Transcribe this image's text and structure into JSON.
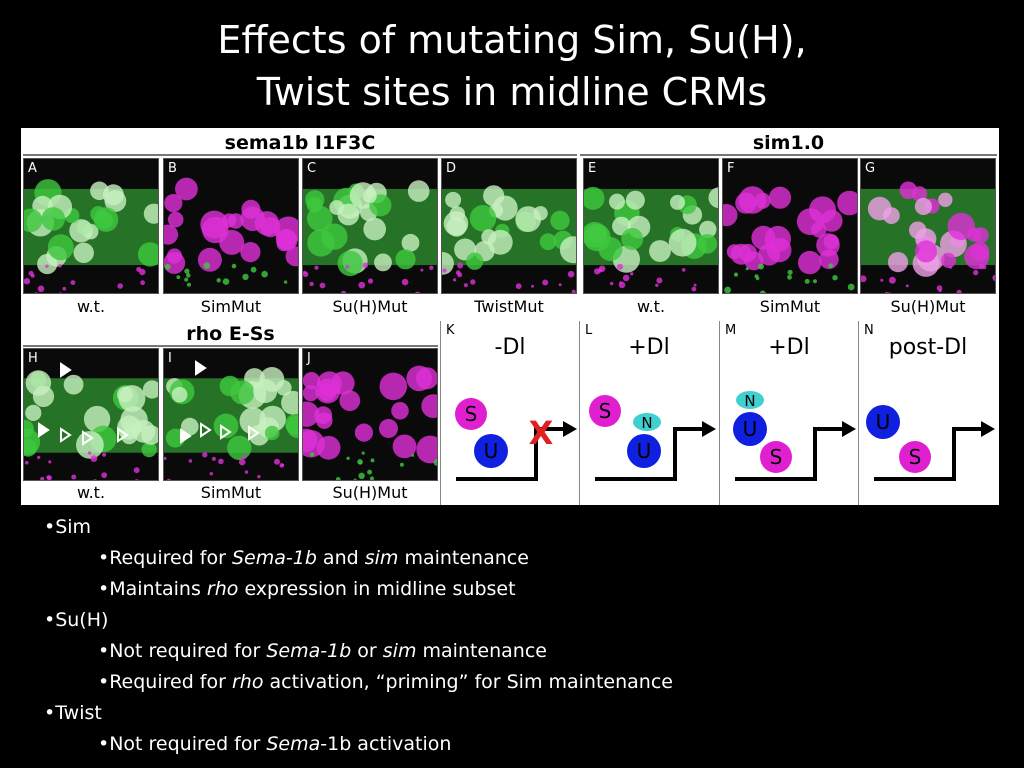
{
  "title": {
    "line1": "Effects of mutating Sim, Su(H),",
    "line2": "Twist sites in midline CRMs"
  },
  "figure": {
    "headers": {
      "sema": "sema1b I1F3C",
      "sim": "sim1.0",
      "rho": "rho E-Ss"
    },
    "top_panels": [
      {
        "letter": "A",
        "caption": "w.t.",
        "look": "green"
      },
      {
        "letter": "B",
        "caption": "SimMut",
        "look": "magenta"
      },
      {
        "letter": "C",
        "caption": "Su(H)Mut",
        "look": "green"
      },
      {
        "letter": "D",
        "caption": "TwistMut",
        "look": "green"
      },
      {
        "letter": "E",
        "caption": "w.t.",
        "look": "green"
      },
      {
        "letter": "F",
        "caption": "SimMut",
        "look": "magenta"
      },
      {
        "letter": "G",
        "caption": "Su(H)Mut",
        "look": "mixed"
      }
    ],
    "bottom_panels": [
      {
        "letter": "H",
        "caption": "w.t.",
        "look": "green"
      },
      {
        "letter": "I",
        "caption": "SimMut",
        "look": "green"
      },
      {
        "letter": "J",
        "caption": "Su(H)Mut",
        "look": "magenta"
      }
    ],
    "diagrams": [
      {
        "letter": "K",
        "label": "-Dl",
        "s": "S",
        "u": "U",
        "n": "",
        "x": "X"
      },
      {
        "letter": "L",
        "label": "+Dl",
        "s": "S",
        "u": "U",
        "n": "N",
        "x": ""
      },
      {
        "letter": "M",
        "label": "+Dl",
        "s": "S",
        "u": "U",
        "n": "N",
        "x": ""
      },
      {
        "letter": "N",
        "label": "post-Dl",
        "s": "S",
        "u": "U",
        "n": "",
        "x": ""
      }
    ],
    "colors": {
      "sim": "#e020d0",
      "suh": "#1020e0",
      "notch": "#40d0d0",
      "x": "#e02020",
      "green": "#3ec83e",
      "magenta": "#e030d8"
    }
  },
  "bullets": [
    {
      "level": 1,
      "parts": [
        {
          "t": "•Sim"
        }
      ]
    },
    {
      "level": 2,
      "parts": [
        {
          "t": "•Required for "
        },
        {
          "t": "Sema-1b",
          "i": true
        },
        {
          "t": " and "
        },
        {
          "t": "sim",
          "i": true
        },
        {
          "t": " maintenance"
        }
      ]
    },
    {
      "level": 2,
      "parts": [
        {
          "t": "•Maintains "
        },
        {
          "t": "rho",
          "i": true
        },
        {
          "t": " expression in midline subset"
        }
      ]
    },
    {
      "level": 1,
      "parts": [
        {
          "t": "•Su(H)"
        }
      ]
    },
    {
      "level": 2,
      "parts": [
        {
          "t": "•Not required for "
        },
        {
          "t": "Sema-1b",
          "i": true
        },
        {
          "t": " or "
        },
        {
          "t": "sim",
          "i": true
        },
        {
          "t": " maintenance"
        }
      ]
    },
    {
      "level": 2,
      "parts": [
        {
          "t": "•Required for "
        },
        {
          "t": "rho",
          "i": true
        },
        {
          "t": " activation, “priming” for Sim maintenance"
        }
      ]
    },
    {
      "level": 1,
      "parts": [
        {
          "t": "•Twist"
        }
      ]
    },
    {
      "level": 2,
      "parts": [
        {
          "t": "•Not required for "
        },
        {
          "t": "Sema",
          "i": true
        },
        {
          "t": "-1b activation"
        }
      ]
    }
  ]
}
